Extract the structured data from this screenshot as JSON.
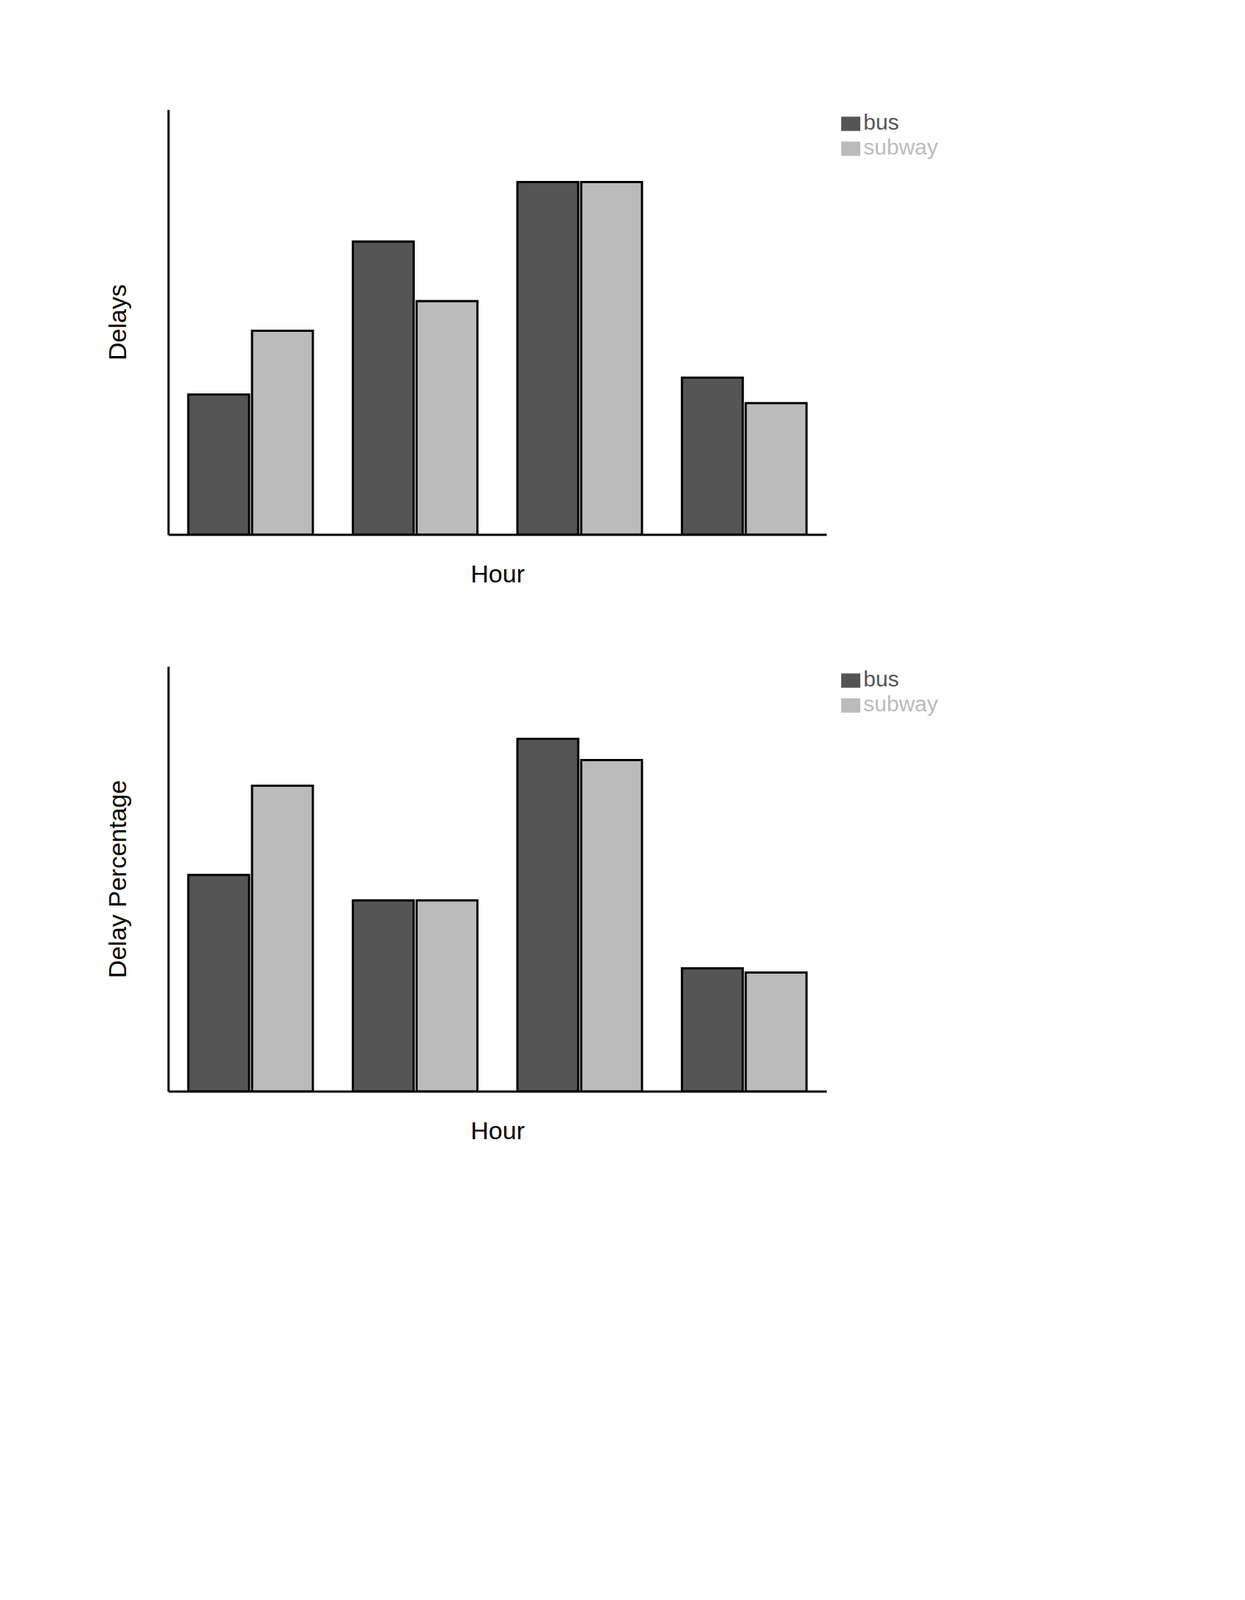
{
  "chart_data": [
    {
      "type": "bar",
      "y_label": "Delays",
      "x_label": "Hour",
      "categories": [
        null,
        null,
        null,
        null
      ],
      "series": [
        {
          "name": "bus",
          "color": "#555555",
          "values": [
            33,
            69,
            83,
            37
          ]
        },
        {
          "name": "subway",
          "color": "#bbbbbb",
          "values": [
            48,
            55,
            83,
            31
          ]
        }
      ],
      "ylim": [
        0,
        100
      ],
      "grid": false,
      "legend": "top-right",
      "tick_labels": false
    },
    {
      "type": "bar",
      "y_label": "Delay Percentage",
      "x_label": "Hour",
      "categories": [
        null,
        null,
        null,
        null
      ],
      "series": [
        {
          "name": "bus",
          "color": "#555555",
          "values": [
            51,
            45,
            83,
            29
          ]
        },
        {
          "name": "subway",
          "color": "#bbbbbb",
          "values": [
            72,
            45,
            78,
            28
          ]
        }
      ],
      "ylim": [
        0,
        100
      ],
      "grid": false,
      "legend": "top-right",
      "tick_labels": false
    }
  ]
}
